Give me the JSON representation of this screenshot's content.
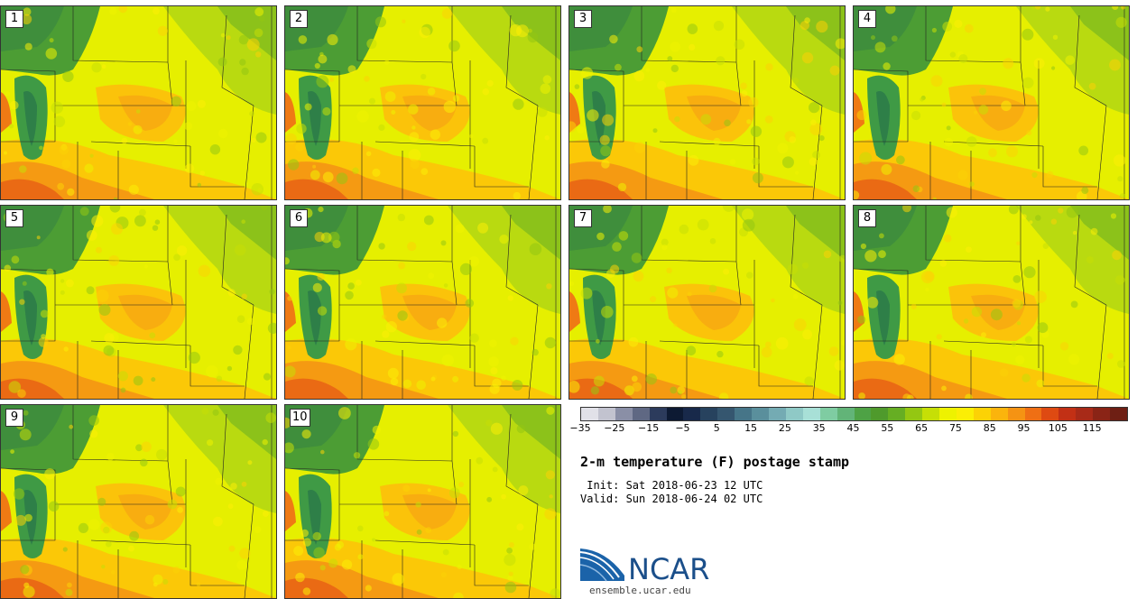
{
  "panels": [
    {
      "label": "1"
    },
    {
      "label": "2"
    },
    {
      "label": "3"
    },
    {
      "label": "4"
    },
    {
      "label": "5"
    },
    {
      "label": "6"
    },
    {
      "label": "7"
    },
    {
      "label": "8"
    },
    {
      "label": "9"
    },
    {
      "label": "10"
    }
  ],
  "colorbar": {
    "colors": [
      "#e1e1e8",
      "#c2c3cf",
      "#8a8fa6",
      "#5f6883",
      "#2c3b5c",
      "#0d1a33",
      "#18294a",
      "#27425e",
      "#35566f",
      "#467588",
      "#5a8f9c",
      "#74abb3",
      "#8fc9c6",
      "#a8e0d7",
      "#7fcca2",
      "#62b478",
      "#4ea245",
      "#4f9a2c",
      "#66ae23",
      "#94c712",
      "#c6df06",
      "#eef200",
      "#fbee05",
      "#fcd205",
      "#fbb40c",
      "#f59313",
      "#ef6f14",
      "#de4a12",
      "#c23015",
      "#a82a18",
      "#8a2416",
      "#6e1f14"
    ],
    "ticks": [
      "−35",
      "−25",
      "−15",
      "−5",
      "5",
      "15",
      "25",
      "35",
      "45",
      "55",
      "65",
      "75",
      "85",
      "95",
      "105",
      "115"
    ]
  },
  "title": "2-m temperature (F) postage stamp",
  "init": " Init: Sat 2018-06-23 12 UTC",
  "valid": "Valid: Sun 2018-06-24 02 UTC",
  "logo": {
    "text": "NCAR",
    "site": "ensemble.ucar.edu"
  }
}
